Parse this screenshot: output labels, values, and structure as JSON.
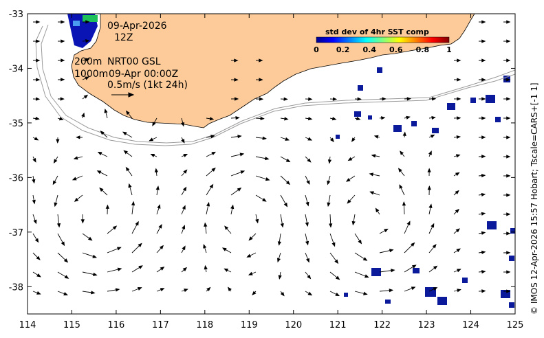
{
  "map": {
    "x_range": [
      114,
      125
    ],
    "y_range": [
      -38.5,
      -33
    ],
    "x_ticks": [
      "114",
      "115",
      "116",
      "117",
      "118",
      "119",
      "120",
      "121",
      "122",
      "123",
      "124",
      "125"
    ],
    "y_ticks": [
      "-33",
      "-34",
      "-35",
      "-36",
      "-37",
      "-38"
    ],
    "y_tick_values": [
      -33,
      -34,
      -35,
      -36,
      -37,
      -38
    ],
    "land_color": "#fccb99",
    "coast_color": "#000000",
    "isobath_color": "#9a9a9a"
  },
  "annotations": {
    "date": "09-Apr-2026",
    "time": "12Z",
    "depth1": "200m",
    "product": "NRT00 GSL",
    "depth2": "1000m",
    "valid": "09-Apr 00:00Z",
    "scale_label": "0.5m/s (1kt 24h)"
  },
  "colorbar": {
    "title": "std dev of 4hr SST comp",
    "ticks": [
      "0",
      "0.2",
      "0.4",
      "0.6",
      "0.8",
      "1"
    ],
    "tick_values": [
      0,
      0.2,
      0.4,
      0.6,
      0.8,
      1
    ]
  },
  "credit": "© IMOS 12-Apr-2026 15:57 Hobart; Tscale=CARS+[-1 1]"
}
